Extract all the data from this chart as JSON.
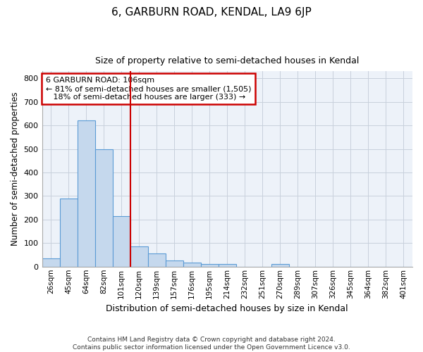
{
  "title": "6, GARBURN ROAD, KENDAL, LA9 6JP",
  "subtitle": "Size of property relative to semi-detached houses in Kendal",
  "xlabel": "Distribution of semi-detached houses by size in Kendal",
  "ylabel": "Number of semi-detached properties",
  "categories": [
    "26sqm",
    "45sqm",
    "64sqm",
    "82sqm",
    "101sqm",
    "120sqm",
    "139sqm",
    "157sqm",
    "176sqm",
    "195sqm",
    "214sqm",
    "232sqm",
    "251sqm",
    "270sqm",
    "289sqm",
    "307sqm",
    "326sqm",
    "345sqm",
    "364sqm",
    "382sqm",
    "401sqm"
  ],
  "values": [
    35,
    290,
    622,
    500,
    215,
    85,
    57,
    25,
    18,
    12,
    10,
    0,
    0,
    10,
    0,
    0,
    0,
    0,
    0,
    0,
    0
  ],
  "bar_color": "#c5d8ed",
  "bar_edge_color": "#5b9bd5",
  "grid_color": "#c8d0dc",
  "background_color": "#edf2f9",
  "red_line_x": 4.5,
  "annotation_text": "6 GARBURN ROAD: 106sqm\n← 81% of semi-detached houses are smaller (1,505)\n   18% of semi-detached houses are larger (333) →",
  "annotation_box_color": "#ffffff",
  "annotation_box_edge_color": "#cc0000",
  "ylim": [
    0,
    830
  ],
  "yticks": [
    0,
    100,
    200,
    300,
    400,
    500,
    600,
    700,
    800
  ],
  "footer_line1": "Contains HM Land Registry data © Crown copyright and database right 2024.",
  "footer_line2": "Contains public sector information licensed under the Open Government Licence v3.0."
}
